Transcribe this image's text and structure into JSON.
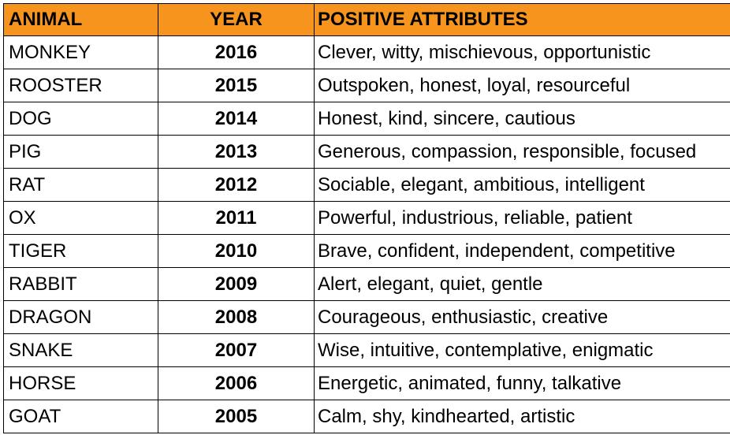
{
  "table": {
    "header_bg": "#f7941d",
    "headers": {
      "animal": "ANIMAL",
      "year": "YEAR",
      "attributes": "POSITIVE ATTRIBUTES"
    },
    "rows": [
      {
        "animal": "MONKEY",
        "year": "2016",
        "attributes": "Clever, witty, mischievous, opportunistic"
      },
      {
        "animal": "ROOSTER",
        "year": "2015",
        "attributes": "Outspoken, honest, loyal, resourceful"
      },
      {
        "animal": "DOG",
        "year": "2014",
        "attributes": "Honest, kind, sincere, cautious"
      },
      {
        "animal": "PIG",
        "year": "2013",
        "attributes": "Generous, compassion, responsible, focused"
      },
      {
        "animal": "RAT",
        "year": "2012",
        "attributes": "Sociable, elegant, ambitious, intelligent"
      },
      {
        "animal": "OX",
        "year": "2011",
        "attributes": "Powerful, industrious, reliable, patient"
      },
      {
        "animal": "TIGER",
        "year": "2010",
        "attributes": "Brave, confident, independent, competitive"
      },
      {
        "animal": "RABBIT",
        "year": "2009",
        "attributes": "Alert, elegant, quiet, gentle"
      },
      {
        "animal": "DRAGON",
        "year": "2008",
        "attributes": "Courageous, enthusiastic, creative"
      },
      {
        "animal": "SNAKE",
        "year": "2007",
        "attributes": "Wise, intuitive, contemplative, enigmatic"
      },
      {
        "animal": "HORSE",
        "year": "2006",
        "attributes": "Energetic, animated, funny, talkative"
      },
      {
        "animal": "GOAT",
        "year": "2005",
        "attributes": "Calm, shy, kindhearted, artistic"
      }
    ]
  }
}
